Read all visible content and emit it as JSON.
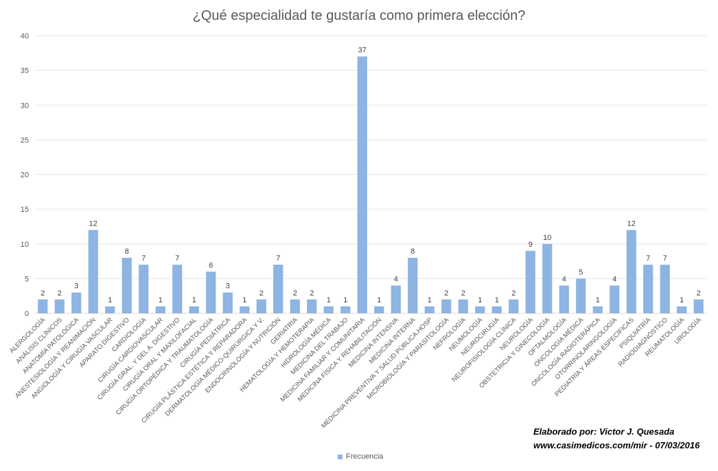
{
  "chart_data": {
    "type": "bar",
    "title": "¿Qué especialidad te gustaría como primera elección?",
    "categories": [
      "ALERGOLOGÍA",
      "ANÁLISIS CLÍNICOS",
      "ANATOMÍA PATOLÓGICA",
      "ANESTESIOLOGÍA Y REANIMACIÓN",
      "ANGIOLOGÍA Y CIRUGÍA VASCULAR",
      "APARATO DIGESTIVO",
      "CARDIOLOGÍA",
      "CIRUGÍA CARDIOVASCULAR",
      "CIRUGÍA GRAL. Y DEL A. DIGESTIVO",
      "CIRUGÍA ORAL Y MAXILOFACIAL",
      "CIRUGÍA ORTOPÉDICA Y TRAUMATOLOGÍA",
      "CIRUGÍA PEDIÁTRICA",
      "CIRUGÍA PLÁSTICA ESTÉTICA Y REPARADORA",
      "DERMATOLOGÍA MÉDICO-QUIRÚRGICA Y V.",
      "ENDOCRINOLOGÍA Y NUTRICIÓN",
      "GERIATRÍA",
      "HEMATOLOGÍA Y HEMOTERAPIA",
      "HIDROLOGÍA MÉDICA",
      "MEDICINA DEL TRABAJO",
      "MEDICINA FAMILIAR Y COMUNITARIA",
      "MEDICINA FÍSICA Y REHABILITACIÓN",
      "MEDICINA INTENSIVA",
      "MEDICINA INTERNA",
      "MEDICINA PREVENTIVA Y SALUD PÚBLICA.HOSP",
      "MICROBIOLOGÍA Y PARASITOLOGÍA",
      "NEFROLOGÍA",
      "NEUMOLOGÍA",
      "NEUROCIRUGÍA",
      "NEUROFISIOLOGÍA CLÍNICA",
      "NEUROLOGÍA",
      "OBSTETRICIA Y GINECOLOGÍA",
      "OFTALMOLOGÍA",
      "ONCOLOGÍA MÉDICA",
      "ONCOLOGÍA RADIOTERÁPICA",
      "OTORRINOLARINGOLOGÍA",
      "PEDIATRÍA Y ÁREAS ESPECÍFICAS",
      "PSIQUIATRÍA",
      "RADIODIAGNÓSTICO",
      "REUMATOLOGÍA",
      "UROLOGÍA"
    ],
    "series": [
      {
        "name": "Frecuencia",
        "values": [
          2,
          2,
          3,
          12,
          1,
          8,
          7,
          1,
          7,
          1,
          6,
          3,
          1,
          2,
          7,
          2,
          2,
          1,
          1,
          37,
          1,
          4,
          8,
          1,
          2,
          2,
          1,
          1,
          2,
          9,
          10,
          4,
          5,
          1,
          4,
          12,
          7,
          7,
          1,
          2
        ]
      }
    ],
    "xlabel": "",
    "ylabel": "",
    "ylim": [
      0,
      40
    ],
    "yticks": [
      0,
      5,
      10,
      15,
      20,
      25,
      30,
      35,
      40
    ],
    "grid": true,
    "legend": "bottom",
    "bar_color": "#8db4e2"
  },
  "credit": {
    "line1": "Elaborado por: Victor J. Quesada",
    "line2": "www.casimedicos.com/mir  - 07/03/2016"
  }
}
